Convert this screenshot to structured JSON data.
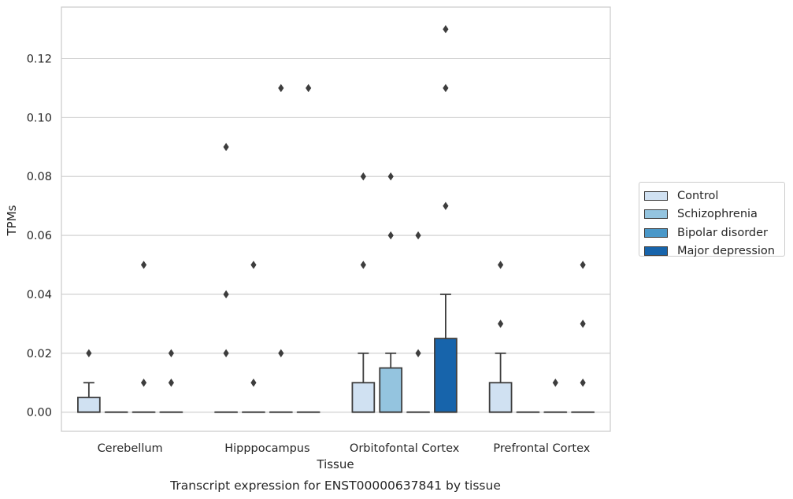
{
  "chart_data": {
    "type": "box",
    "title": "Transcript expression for ENST00000637841 by tissue",
    "xlabel": "Tissue",
    "ylabel": "TPMs",
    "ylim": [
      -0.0065,
      0.1375
    ],
    "yticks": [
      "0.00",
      "0.02",
      "0.04",
      "0.06",
      "0.08",
      "0.10",
      "0.12"
    ],
    "categories": [
      "Cerebellum",
      "Hipppocampus",
      "Orbitofontal Cortex",
      "Prefrontal Cortex"
    ],
    "grid": true,
    "legend_position": "right",
    "series": [
      {
        "name": "Control",
        "color": "#d0e1f2",
        "boxes": [
          {
            "q1": 0.0,
            "median": 0.0,
            "q3": 0.005,
            "whisker_low": 0.0,
            "whisker_high": 0.01,
            "outliers": [
              0.02
            ]
          },
          {
            "q1": 0.0,
            "median": 0.0,
            "q3": 0.0,
            "whisker_low": 0.0,
            "whisker_high": 0.0,
            "outliers": [
              0.09,
              0.04,
              0.02
            ]
          },
          {
            "q1": 0.0,
            "median": 0.0,
            "q3": 0.01,
            "whisker_low": 0.0,
            "whisker_high": 0.02,
            "outliers": [
              0.08,
              0.05
            ]
          },
          {
            "q1": 0.0,
            "median": 0.0,
            "q3": 0.01,
            "whisker_low": 0.0,
            "whisker_high": 0.02,
            "outliers": [
              0.05,
              0.03
            ]
          }
        ]
      },
      {
        "name": "Schizophrenia",
        "color": "#94c4df",
        "boxes": [
          {
            "q1": 0.0,
            "median": 0.0,
            "q3": 0.0,
            "whisker_low": 0.0,
            "whisker_high": 0.0,
            "outliers": []
          },
          {
            "q1": 0.0,
            "median": 0.0,
            "q3": 0.0,
            "whisker_low": 0.0,
            "whisker_high": 0.0,
            "outliers": [
              0.05,
              0.01
            ]
          },
          {
            "q1": 0.0,
            "median": 0.0,
            "q3": 0.015,
            "whisker_low": 0.0,
            "whisker_high": 0.02,
            "outliers": [
              0.08,
              0.06
            ]
          },
          {
            "q1": 0.0,
            "median": 0.0,
            "q3": 0.0,
            "whisker_low": 0.0,
            "whisker_high": 0.0,
            "outliers": []
          }
        ]
      },
      {
        "name": "Bipolar disorder",
        "color": "#4a98c9",
        "boxes": [
          {
            "q1": 0.0,
            "median": 0.0,
            "q3": 0.0,
            "whisker_low": 0.0,
            "whisker_high": 0.0,
            "outliers": [
              0.05,
              0.01
            ]
          },
          {
            "q1": 0.0,
            "median": 0.0,
            "q3": 0.0,
            "whisker_low": 0.0,
            "whisker_high": 0.0,
            "outliers": [
              0.11,
              0.02
            ]
          },
          {
            "q1": 0.0,
            "median": 0.0,
            "q3": 0.0,
            "whisker_low": 0.0,
            "whisker_high": 0.0,
            "outliers": [
              0.06,
              0.02
            ]
          },
          {
            "q1": 0.0,
            "median": 0.0,
            "q3": 0.0,
            "whisker_low": 0.0,
            "whisker_high": 0.0,
            "outliers": [
              0.01
            ]
          }
        ]
      },
      {
        "name": "Major depression",
        "color": "#1764ab",
        "boxes": [
          {
            "q1": 0.0,
            "median": 0.0,
            "q3": 0.0,
            "whisker_low": 0.0,
            "whisker_high": 0.0,
            "outliers": [
              0.02,
              0.01
            ]
          },
          {
            "q1": 0.0,
            "median": 0.0,
            "q3": 0.0,
            "whisker_low": 0.0,
            "whisker_high": 0.0,
            "outliers": [
              0.11
            ]
          },
          {
            "q1": 0.0,
            "median": 0.0,
            "q3": 0.025,
            "whisker_low": 0.0,
            "whisker_high": 0.04,
            "outliers": [
              0.13,
              0.11,
              0.07
            ]
          },
          {
            "q1": 0.0,
            "median": 0.0,
            "q3": 0.0,
            "whisker_low": 0.0,
            "whisker_high": 0.0,
            "outliers": [
              0.05,
              0.03,
              0.01
            ]
          }
        ]
      }
    ]
  }
}
